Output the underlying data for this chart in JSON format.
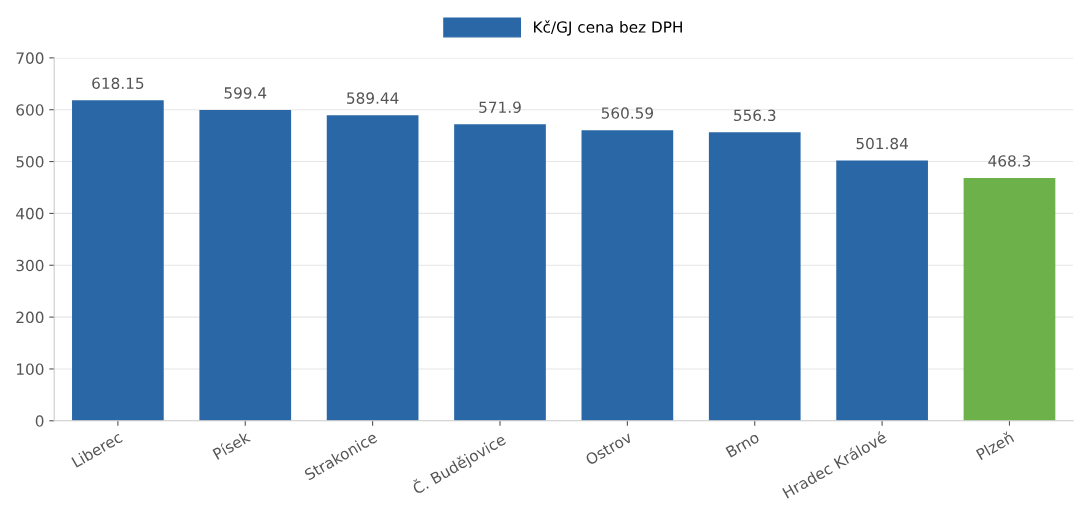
{
  "chart_data": {
    "type": "bar",
    "categories": [
      "Liberec",
      "Písek",
      "Strakonice",
      "Č. Budějovice",
      "Ostrov",
      "Brno",
      "Hradec Králové",
      "Plzeň"
    ],
    "series": [
      {
        "name": "Kč/GJ cena bez DPH",
        "color": "#2a67a6",
        "colors": [
          "#2a67a6",
          "#2a67a6",
          "#2a67a6",
          "#2a67a6",
          "#2a67a6",
          "#2a67a6",
          "#2a67a6",
          "#6db14b"
        ],
        "values": [
          618.15,
          599.4,
          589.44,
          571.9,
          560.59,
          556.3,
          501.84,
          468.3
        ]
      }
    ],
    "ylim": [
      0,
      700
    ],
    "yticks": [
      0,
      100,
      200,
      300,
      400,
      500,
      600,
      700
    ],
    "data_labels": true,
    "grid": "y",
    "legend": "top"
  }
}
